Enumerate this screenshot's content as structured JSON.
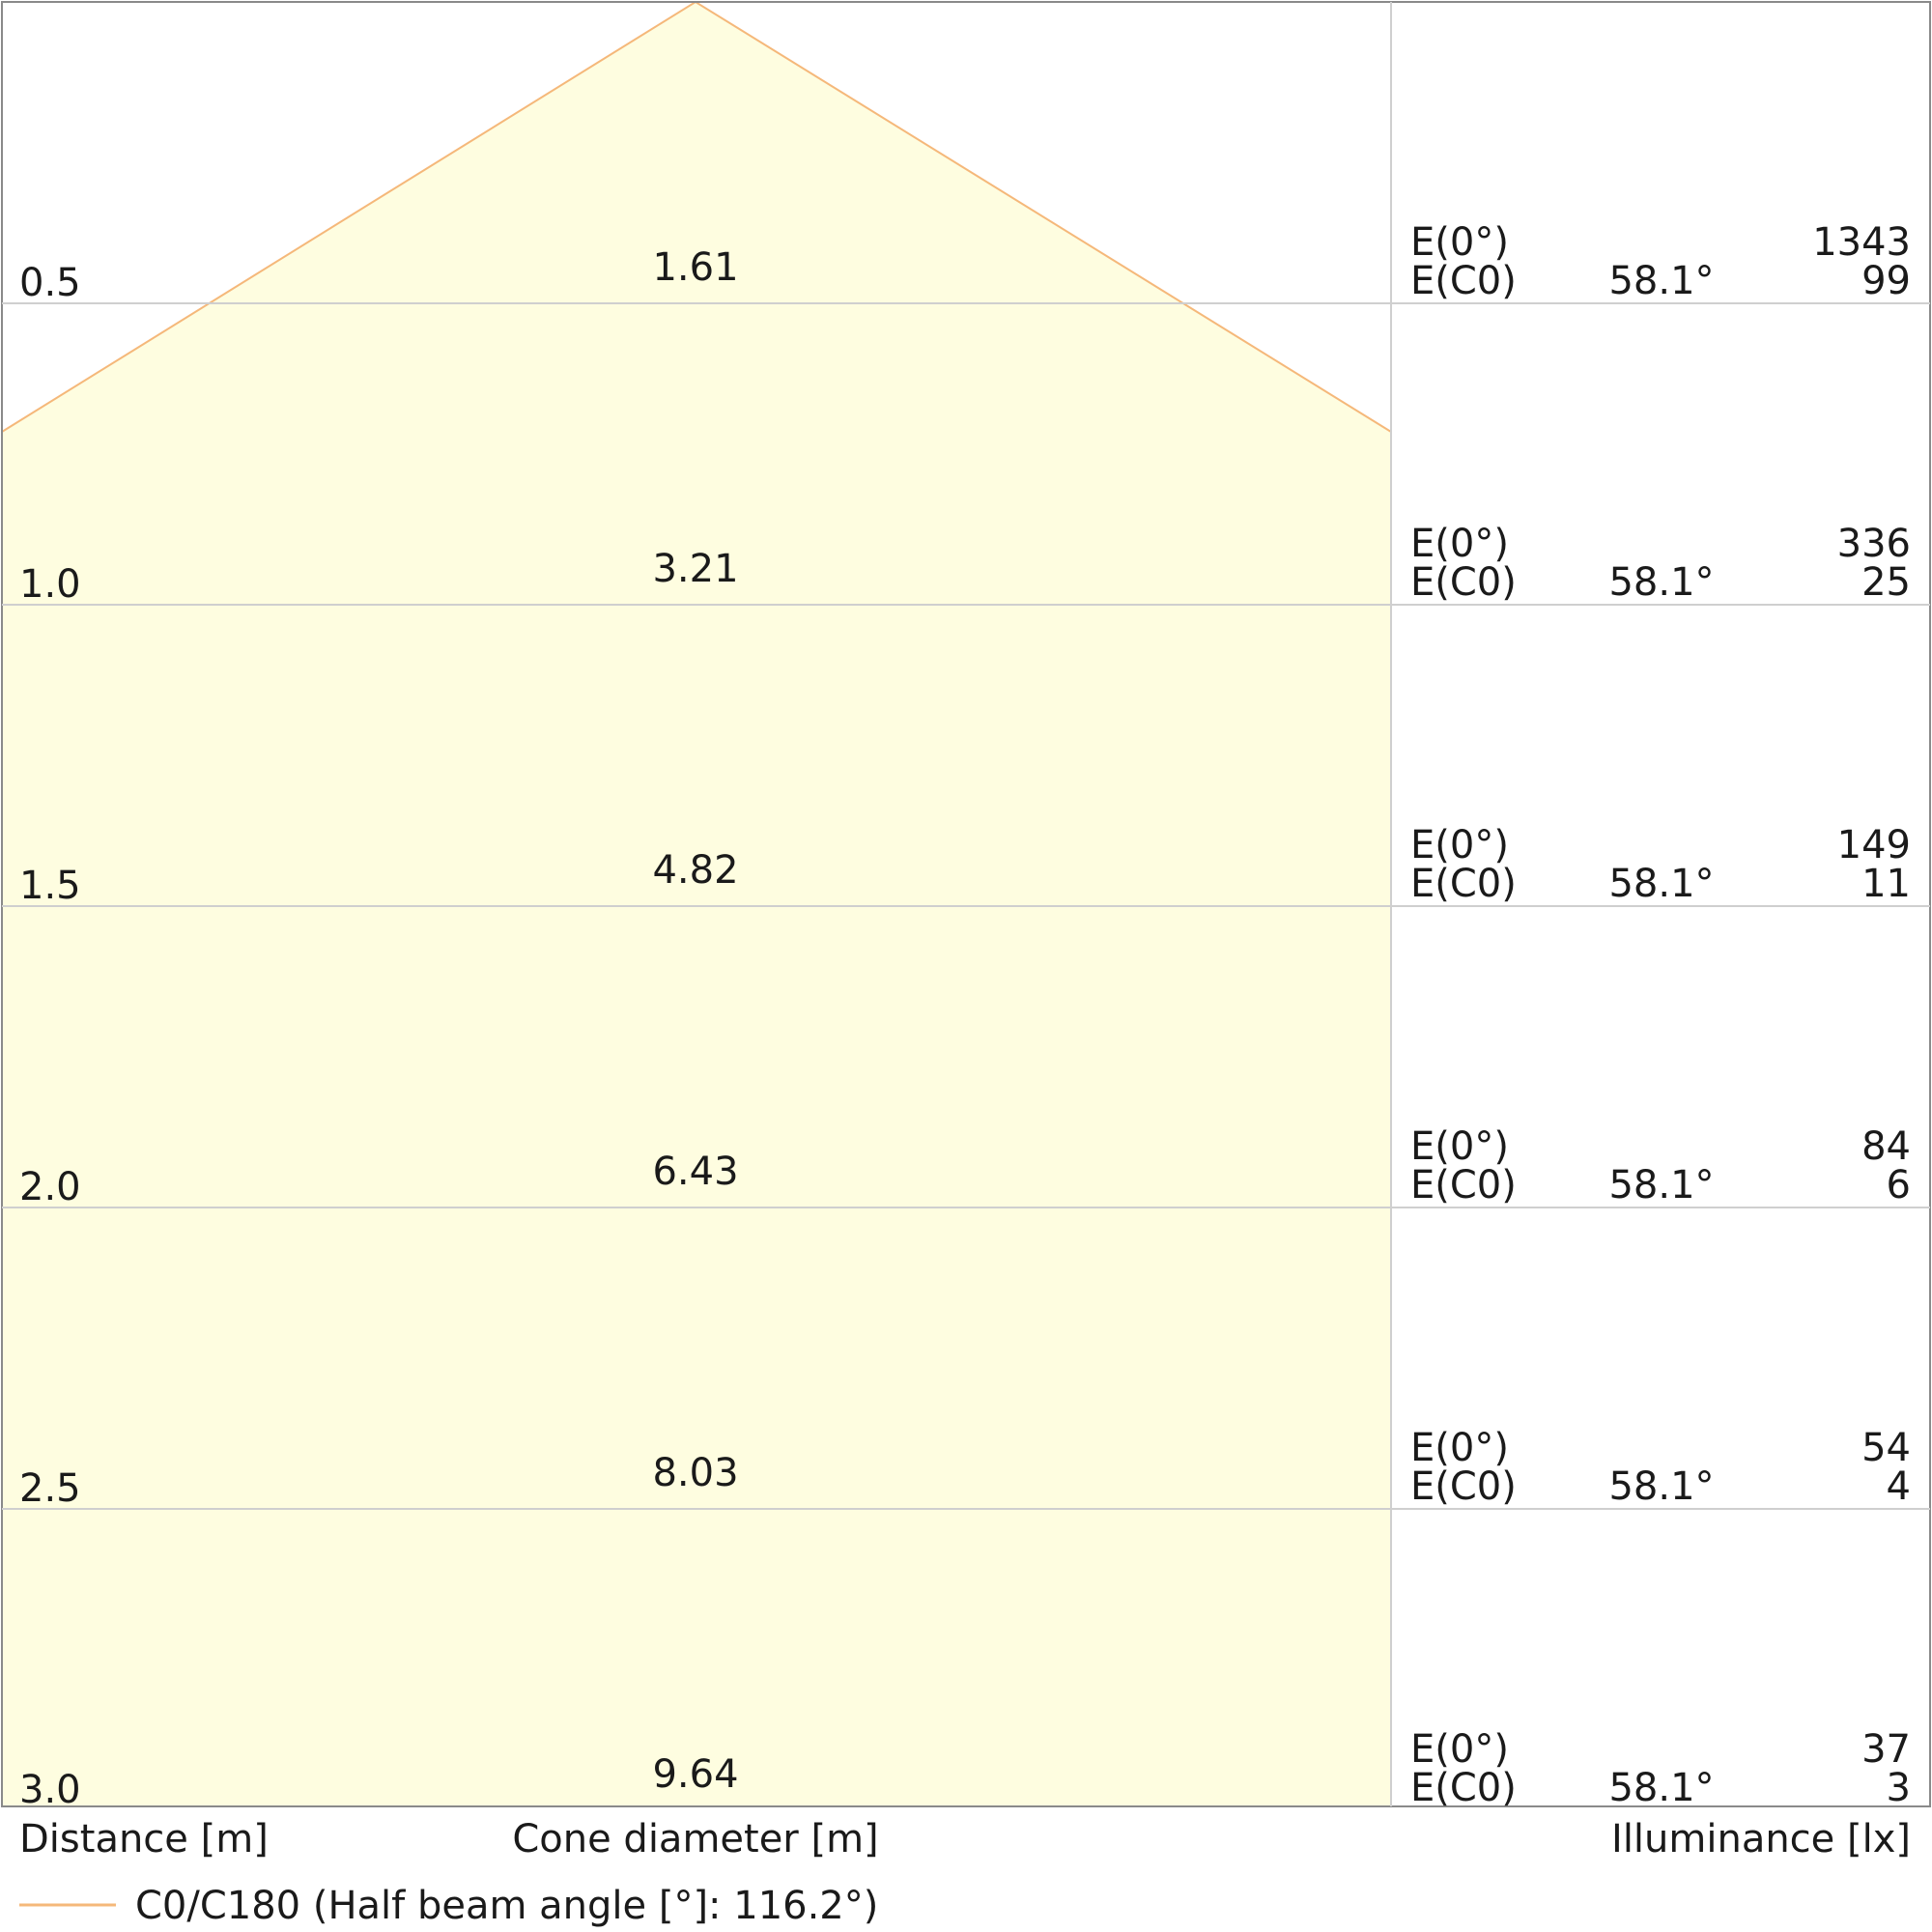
{
  "chart_data": {
    "type": "table",
    "columns": {
      "distance": "Distance [m]",
      "cone": "Cone diameter [m]",
      "illuminance": "Illuminance [lx]"
    },
    "rows": [
      {
        "distance": "0.5",
        "cone_diameter": "1.61",
        "e0_label": "E(0°)",
        "ec_label": "E(C0)",
        "angle": "58.1°",
        "e0": "1343",
        "ec": "99"
      },
      {
        "distance": "1.0",
        "cone_diameter": "3.21",
        "e0_label": "E(0°)",
        "ec_label": "E(C0)",
        "angle": "58.1°",
        "e0": "336",
        "ec": "25"
      },
      {
        "distance": "1.5",
        "cone_diameter": "4.82",
        "e0_label": "E(0°)",
        "ec_label": "E(C0)",
        "angle": "58.1°",
        "e0": "149",
        "ec": "11"
      },
      {
        "distance": "2.0",
        "cone_diameter": "6.43",
        "e0_label": "E(0°)",
        "ec_label": "E(C0)",
        "angle": "58.1°",
        "e0": "84",
        "ec": "6"
      },
      {
        "distance": "2.5",
        "cone_diameter": "8.03",
        "e0_label": "E(0°)",
        "ec_label": "E(C0)",
        "angle": "58.1°",
        "e0": "54",
        "ec": "4"
      },
      {
        "distance": "3.0",
        "cone_diameter": "9.64",
        "e0_label": "E(0°)",
        "ec_label": "E(C0)",
        "angle": "58.1°",
        "e0": "37",
        "ec": "3"
      }
    ],
    "beam": {
      "legend": "C0/C180 (Half beam angle [°]: 116.2°)",
      "half_beam_angle_deg": 116.2,
      "color": "#f5b87a",
      "fill": "#fefde0"
    }
  }
}
